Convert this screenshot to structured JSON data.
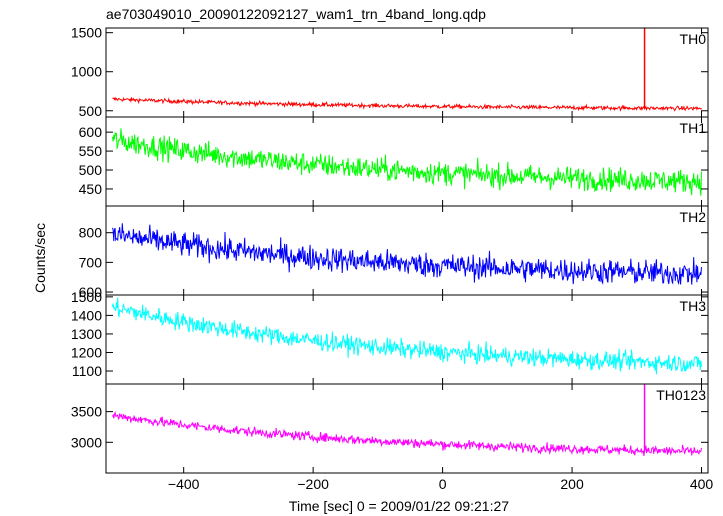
{
  "chart_data": {
    "type": "line",
    "title": "ae703049010_20090122092127_wam1_trn_4band_long.qdp",
    "xlabel": "Time [sec] 0 = 2009/01/22 09:21:27",
    "ylabel": "Counts/sec",
    "xlim": [
      -520,
      410
    ],
    "xticks": [
      -400,
      -200,
      0,
      200,
      400
    ],
    "grid": false,
    "panels": [
      {
        "name": "TH0",
        "color": "#ff0000",
        "ylim": [
          420,
          1560
        ],
        "yticks": [
          500,
          1000,
          1500
        ],
        "start_value": 650,
        "end_value": 530,
        "noise": 18,
        "spike": {
          "x": 312,
          "y": 1560
        }
      },
      {
        "name": "TH1",
        "color": "#00ff00",
        "ylim": [
          405,
          640
        ],
        "yticks": [
          450,
          500,
          550,
          600
        ],
        "start_value": 580,
        "end_value": 470,
        "noise": 22
      },
      {
        "name": "TH2",
        "color": "#0000ff",
        "ylim": [
          590,
          890
        ],
        "yticks": [
          600,
          700,
          800
        ],
        "start_value": 795,
        "end_value": 662,
        "noise": 30
      },
      {
        "name": "TH3",
        "color": "#00ffff",
        "ylim": [
          1030,
          1510
        ],
        "yticks": [
          1100,
          1200,
          1300,
          1400,
          1500
        ],
        "start_value": 1445,
        "end_value": 1140,
        "noise": 35
      },
      {
        "name": "TH0123",
        "color": "#ff00ff",
        "ylim": [
          2500,
          3950
        ],
        "yticks": [
          3000,
          3500
        ],
        "start_value": 3440,
        "end_value": 2850,
        "noise": 55,
        "spike": {
          "x": 312,
          "y": 3950
        }
      }
    ]
  }
}
